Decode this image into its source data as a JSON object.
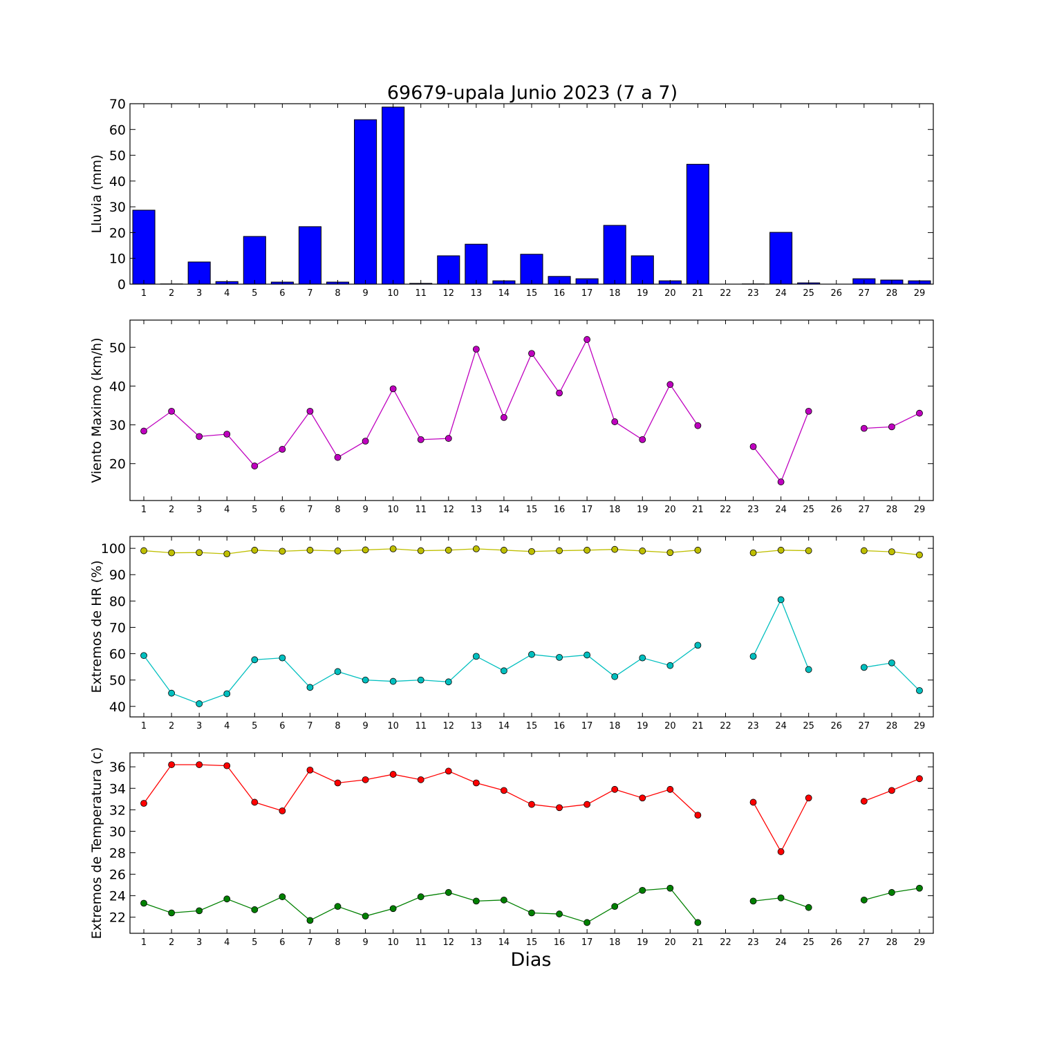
{
  "chart_data": [
    {
      "type": "bar",
      "title": "69679-upala Junio 2023  (7 a 7)",
      "xlabel": "",
      "ylabel": "Lluvia (mm)",
      "x": [
        1,
        2,
        3,
        4,
        5,
        6,
        7,
        8,
        9,
        10,
        11,
        12,
        13,
        14,
        15,
        16,
        17,
        18,
        19,
        20,
        21,
        22,
        23,
        24,
        25,
        26,
        27,
        28,
        29
      ],
      "xlim": [
        0.5,
        29.5
      ],
      "ylim": [
        0,
        70
      ],
      "yticks": [
        0,
        10,
        20,
        30,
        40,
        50,
        60,
        70
      ],
      "series": [
        {
          "color": "#0000ff",
          "values": [
            28.7,
            0.1,
            8.6,
            1.0,
            18.5,
            0.8,
            22.3,
            0.8,
            63.8,
            68.7,
            0.3,
            11.0,
            15.5,
            1.3,
            11.6,
            3.0,
            2.1,
            22.8,
            11.0,
            1.3,
            46.5,
            0.0,
            0.1,
            20.1,
            0.5,
            0.0,
            2.1,
            1.6,
            1.3
          ]
        }
      ]
    },
    {
      "type": "line",
      "xlabel": "",
      "ylabel": "Viento Maximo (km/h)",
      "x": [
        1,
        2,
        3,
        4,
        5,
        6,
        7,
        8,
        9,
        10,
        11,
        12,
        13,
        14,
        15,
        16,
        17,
        18,
        19,
        20,
        21,
        22,
        23,
        24,
        25,
        26,
        27,
        28,
        29
      ],
      "xlim": [
        0.5,
        29.5
      ],
      "ylim": [
        10.5,
        57
      ],
      "yticks": [
        20,
        30,
        40,
        50
      ],
      "series": [
        {
          "color": "#bf00bf",
          "values": [
            28.4,
            33.5,
            27.0,
            27.6,
            19.4,
            23.7,
            33.5,
            21.6,
            25.8,
            39.3,
            26.2,
            26.5,
            49.5,
            31.9,
            48.4,
            38.2,
            52.0,
            30.8,
            26.2,
            40.4,
            29.8,
            null,
            24.4,
            15.3,
            33.5,
            null,
            29.1,
            29.5,
            33.0
          ]
        }
      ]
    },
    {
      "type": "line",
      "xlabel": "",
      "ylabel": "Extremos de HR (%)",
      "x": [
        1,
        2,
        3,
        4,
        5,
        6,
        7,
        8,
        9,
        10,
        11,
        12,
        13,
        14,
        15,
        16,
        17,
        18,
        19,
        20,
        21,
        22,
        23,
        24,
        25,
        26,
        27,
        28,
        29
      ],
      "xlim": [
        0.5,
        29.5
      ],
      "ylim": [
        36,
        104.5
      ],
      "yticks": [
        40,
        50,
        60,
        70,
        80,
        90,
        100
      ],
      "series": [
        {
          "color": "#bfbf00",
          "values": [
            99.1,
            98.3,
            98.4,
            97.9,
            99.3,
            98.9,
            99.3,
            99.0,
            99.4,
            99.8,
            99.1,
            99.3,
            99.8,
            99.3,
            98.8,
            99.1,
            99.3,
            99.6,
            99.0,
            98.4,
            99.3,
            null,
            98.3,
            99.3,
            99.1,
            null,
            99.1,
            98.7,
            97.5
          ]
        },
        {
          "color": "#00bfbf",
          "values": [
            59.3,
            45.0,
            41.0,
            44.8,
            57.7,
            58.4,
            47.2,
            53.2,
            50.0,
            49.5,
            50.0,
            49.3,
            59.0,
            53.5,
            59.7,
            58.6,
            59.5,
            51.3,
            58.4,
            55.5,
            63.2,
            null,
            59.0,
            80.5,
            54.0,
            null,
            54.8,
            56.5,
            46.0
          ]
        }
      ]
    },
    {
      "type": "line",
      "xlabel": "Dias",
      "ylabel": "Extremos de Temperatura (c)",
      "x": [
        1,
        2,
        3,
        4,
        5,
        6,
        7,
        8,
        9,
        10,
        11,
        12,
        13,
        14,
        15,
        16,
        17,
        18,
        19,
        20,
        21,
        22,
        23,
        24,
        25,
        26,
        27,
        28,
        29
      ],
      "xlim": [
        0.5,
        29.5
      ],
      "ylim": [
        20.5,
        37.3
      ],
      "yticks": [
        22,
        24,
        26,
        28,
        30,
        32,
        34,
        36
      ],
      "series": [
        {
          "color": "#ff0000",
          "values": [
            32.6,
            36.2,
            36.2,
            36.1,
            32.7,
            31.9,
            35.7,
            34.5,
            34.8,
            35.3,
            34.8,
            35.6,
            34.5,
            33.8,
            32.5,
            32.2,
            32.5,
            33.9,
            33.1,
            33.9,
            31.5,
            null,
            32.7,
            28.1,
            33.1,
            null,
            32.8,
            33.8,
            34.9
          ]
        },
        {
          "color": "#008000",
          "values": [
            23.3,
            22.4,
            22.6,
            23.7,
            22.7,
            23.9,
            21.7,
            23.0,
            22.1,
            22.8,
            23.9,
            24.3,
            23.5,
            23.6,
            22.4,
            22.3,
            21.5,
            23.0,
            24.5,
            24.7,
            21.5,
            null,
            23.5,
            23.8,
            22.9,
            null,
            23.6,
            24.3,
            24.7
          ]
        }
      ]
    }
  ]
}
